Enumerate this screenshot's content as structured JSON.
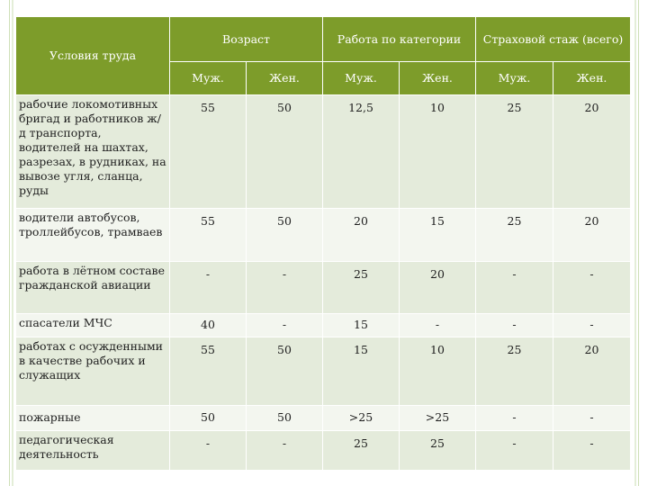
{
  "header": {
    "conditions": "Условия труда",
    "age": "Возраст",
    "category_work": "Работа по категории",
    "insurance": "Страховой стаж (всего)",
    "sub": [
      "Муж.",
      "Жен.",
      "Муж.",
      "Жен.",
      "Муж.",
      "Жен."
    ]
  },
  "rows": [
    {
      "label": "рабочие локомотивных бригад и работников ж/д транспорта, водителей на шахтах, разрезах, в рудниках, на вывозе угля, сланца, руды",
      "values": [
        "55",
        "50",
        "12,5",
        "10",
        "25",
        "20"
      ]
    },
    {
      "label": "водители автобусов, троллейбусов, трамваев",
      "values": [
        "55",
        "50",
        "20",
        "15",
        "25",
        "20"
      ]
    },
    {
      "label": "работа в лётном составе гражданской авиации",
      "values": [
        "-",
        "-",
        "25",
        "20",
        "-",
        "-"
      ]
    },
    {
      "label": "спасатели МЧС",
      "values": [
        "40",
        "-",
        "15",
        "-",
        "-",
        "-"
      ]
    },
    {
      "label": "работах с осужденными в качестве рабочих и служащих",
      "values": [
        "55",
        "50",
        "15",
        "10",
        "25",
        "20"
      ]
    },
    {
      "label": "пожарные",
      "values": [
        "50",
        "50",
        ">25",
        ">25",
        "-",
        "-"
      ]
    },
    {
      "label": "педагогическая деятельность",
      "values": [
        "-",
        "-",
        "25",
        "25",
        "-",
        "-"
      ]
    }
  ]
}
